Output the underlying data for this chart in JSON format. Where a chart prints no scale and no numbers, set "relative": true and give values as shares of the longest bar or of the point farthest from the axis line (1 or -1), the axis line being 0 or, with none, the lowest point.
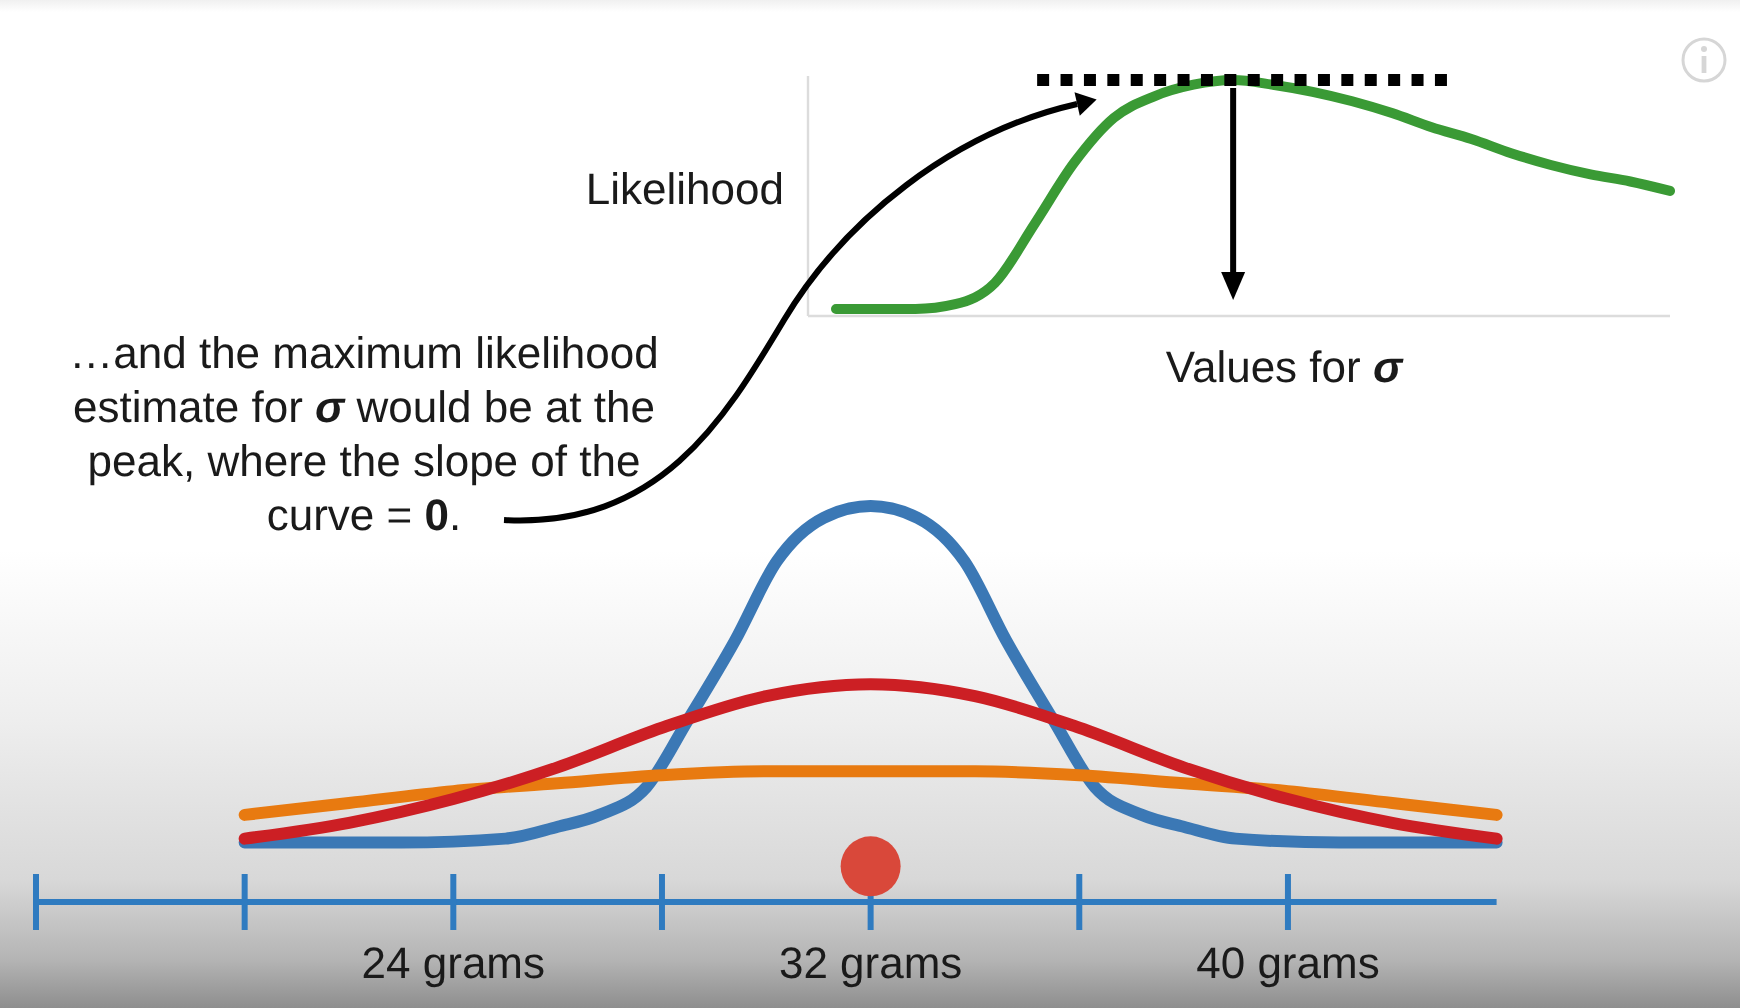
{
  "chart_data": [
    {
      "type": "line",
      "relative": true,
      "ylabel": "Likelihood",
      "xlabel": "Values for σ",
      "categories": [
        null,
        null,
        null,
        null,
        null,
        null,
        null,
        null,
        null,
        null,
        null,
        null,
        null,
        null,
        null,
        null,
        null,
        null,
        null,
        null,
        null,
        null
      ],
      "series": [
        {
          "color": "#3a9a35",
          "values": [
            0.03,
            0.03,
            0.03,
            0.05,
            0.14,
            0.39,
            0.65,
            0.84,
            0.93,
            0.98,
            1,
            0.98,
            0.95,
            0.91,
            0.86,
            0.8,
            0.75,
            0.69,
            0.64,
            0.6,
            0.57,
            0.53
          ]
        }
      ],
      "ref_lines": [
        {
          "axis": "y",
          "value": 1,
          "color": "#000000",
          "line_style": "dotted"
        }
      ],
      "annotations": [
        "…and the maximum likelihood\nestimate for σ would be at the\npeak, where the slope of the\ncurve = 0."
      ]
    },
    {
      "type": "line",
      "relative": true,
      "xlim": [
        16,
        44
      ],
      "xticks": [
        {
          "value": 16,
          "label": null
        },
        {
          "value": 20,
          "label": null
        },
        {
          "value": 24,
          "label": "24 grams"
        },
        {
          "value": 28,
          "label": null
        },
        {
          "value": 32,
          "label": "32 grams"
        },
        {
          "value": 36,
          "label": null
        },
        {
          "value": 40,
          "label": "40 grams"
        }
      ],
      "series": [
        {
          "color": "#3b78b5",
          "x": [
            20,
            23,
            25,
            26,
            26.8,
            27.7,
            28.5,
            29.4,
            30.2,
            31.1,
            32,
            32.9,
            33.8,
            34.6,
            35.5,
            36.3,
            37.2,
            38,
            39,
            41,
            44
          ],
          "values": [
            0.15,
            0.15,
            0.16,
            0.19,
            0.22,
            0.29,
            0.46,
            0.66,
            0.86,
            0.97,
            1,
            0.97,
            0.86,
            0.66,
            0.46,
            0.29,
            0.22,
            0.19,
            0.16,
            0.15,
            0.15
          ]
        },
        {
          "color": "#e87a10",
          "x": [
            20,
            22,
            24,
            26,
            28,
            30,
            32,
            34,
            36,
            38,
            40,
            42,
            44
          ],
          "values": [
            0.22,
            0.25,
            0.28,
            0.3,
            0.32,
            0.33,
            0.33,
            0.33,
            0.32,
            0.3,
            0.28,
            0.25,
            0.22
          ]
        },
        {
          "color": "#cc1f24",
          "x": [
            20,
            22,
            24,
            26,
            28,
            30,
            32,
            34,
            36,
            38,
            40,
            42,
            44
          ],
          "values": [
            0.16,
            0.2,
            0.26,
            0.34,
            0.44,
            0.52,
            0.55,
            0.52,
            0.44,
            0.34,
            0.26,
            0.2,
            0.16
          ]
        },
        {
          "type": "scatter",
          "marker": "circle",
          "color": "#d9483a",
          "x": [
            32
          ],
          "values": [
            0.09
          ]
        }
      ]
    }
  ]
}
